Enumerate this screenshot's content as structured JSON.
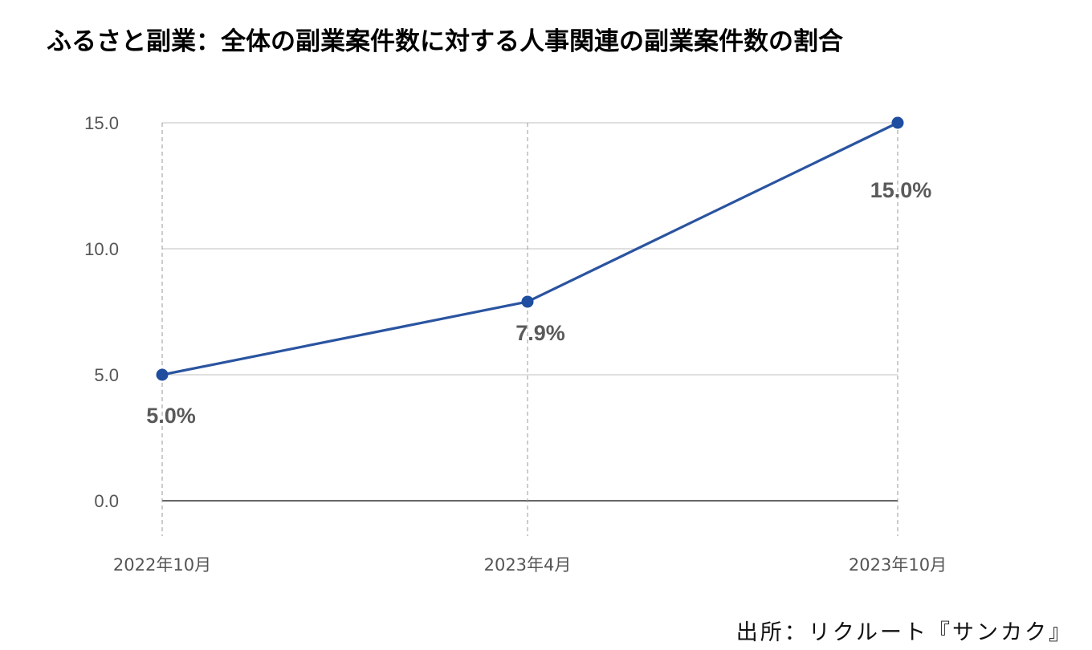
{
  "title": "ふるさと副業：全体の副業案件数に対する人事関連の副業案件数の割合",
  "source": "出所：リクルート『サンカク』",
  "colors": {
    "line": "#2a54a0",
    "point": "#1f4ea0",
    "grid": "#cccccc",
    "baseline": "#333333",
    "label": "#5a5a5a"
  },
  "chart_data": {
    "type": "line",
    "title": "ふるさと副業：全体の副業案件数に対する人事関連の副業案件数の割合",
    "xlabel": "",
    "ylabel": "",
    "categories": [
      "2022年10月",
      "2023年4月",
      "2023年10月"
    ],
    "series": [
      {
        "values": [
          5.0,
          7.9,
          15.0
        ],
        "labels": [
          "5.0%",
          "7.9%",
          "15.0%"
        ]
      }
    ],
    "ylim": [
      0,
      15
    ],
    "y_ticks": [
      "0.0",
      "5.0",
      "10.0",
      "15.0"
    ],
    "grid": true,
    "legend": "none"
  }
}
